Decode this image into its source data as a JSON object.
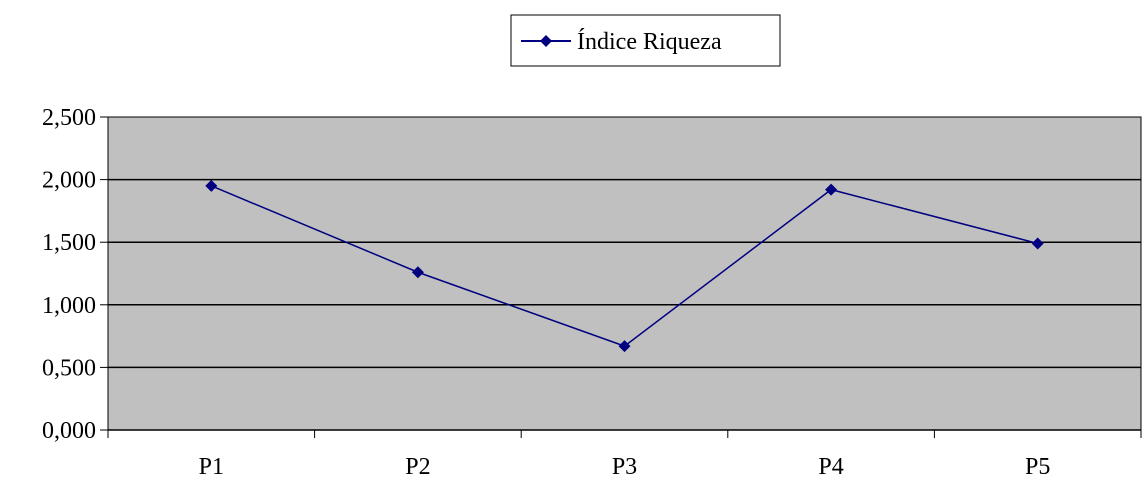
{
  "chart_data": {
    "type": "line",
    "categories": [
      "P1",
      "P2",
      "P3",
      "P4",
      "P5"
    ],
    "series": [
      {
        "name": "Índice Riqueza",
        "values": [
          1.95,
          1.26,
          0.67,
          1.92,
          1.49
        ]
      }
    ],
    "ylim": [
      0,
      2.5
    ],
    "yticks": [
      0,
      0.5,
      1.0,
      1.5,
      2.0,
      2.5
    ],
    "ytick_labels": [
      "0,000",
      "0,500",
      "1,000",
      "1,500",
      "2,000",
      "2,500"
    ],
    "grid": true,
    "legend_position": "top-center",
    "colors": {
      "plot_background": "#c0c0c0",
      "series_line": "#000080",
      "gridline": "#000000"
    }
  }
}
